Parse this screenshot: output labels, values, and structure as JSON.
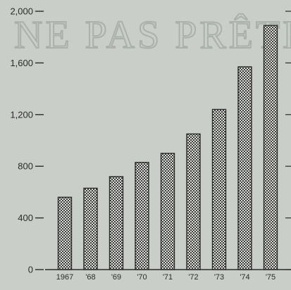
{
  "stamp_text": "NE PAS PRÊTER",
  "chart_data": {
    "type": "bar",
    "categories": [
      "1967",
      "'68",
      "'69",
      "'70",
      "'71",
      "'72",
      "'73",
      "'74",
      "'75"
    ],
    "values": [
      560,
      630,
      720,
      830,
      900,
      1050,
      1240,
      1570,
      1890
    ],
    "ylim": [
      0,
      2000
    ],
    "yticks": [
      0,
      400,
      800,
      1200,
      1600,
      2000
    ],
    "ytick_labels": [
      "0",
      "400",
      "800",
      "1,200",
      "1,600",
      "2,000"
    ],
    "title": "",
    "xlabel": "",
    "ylabel": "",
    "grid": false,
    "bar_fill": "#3a3a3a",
    "bar_pattern": "dotted"
  }
}
